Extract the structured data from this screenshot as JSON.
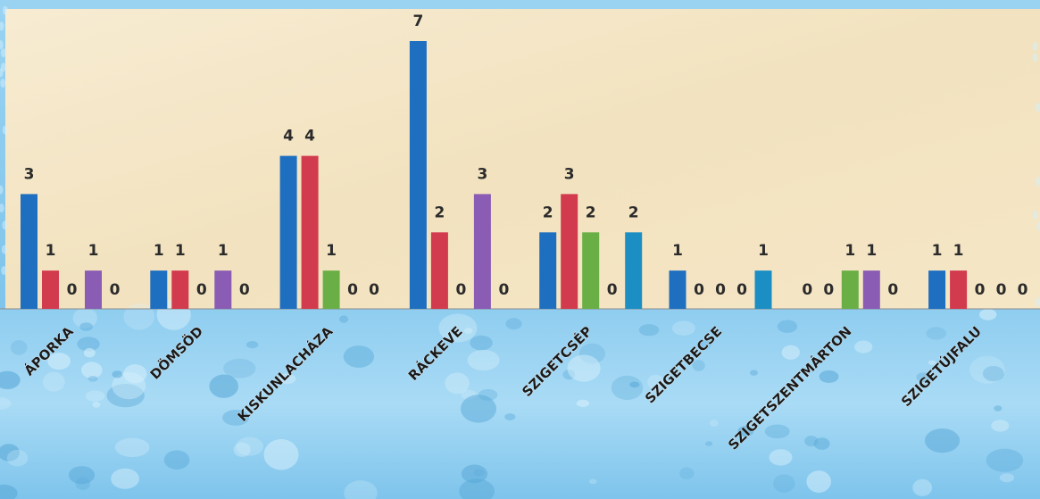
{
  "colors": {
    "parchment_light": "#f6ead0",
    "parchment_mid": "#eedcb4",
    "water_light": "#b6dff4",
    "water_dark": "#5fb0de",
    "label_text": "#2b2b2b",
    "series": [
      "#1f6fc1",
      "#d23a4e",
      "#6aaf45",
      "#8a5cb3",
      "#1b8fc4"
    ]
  },
  "chart_data": {
    "type": "bar",
    "title": "",
    "xlabel": "",
    "ylabel": "",
    "ylim": [
      0,
      7
    ],
    "grid": false,
    "legend": "none",
    "categories": [
      "ÁPORKA",
      "DÖMSÖD",
      "KISKUNLACHÁZA",
      "RÁCKEVE",
      "SZIGETCSÉP",
      "SZIGETBECSE",
      "SZIGETSZENTMÁRTON",
      "SZIGETÚJFALU"
    ],
    "series": [
      {
        "values": [
          3,
          1,
          4,
          7,
          2,
          1,
          0,
          1
        ]
      },
      {
        "values": [
          1,
          1,
          4,
          2,
          3,
          0,
          0,
          1
        ]
      },
      {
        "values": [
          0,
          0,
          1,
          0,
          2,
          0,
          1,
          0
        ]
      },
      {
        "values": [
          1,
          1,
          0,
          3,
          0,
          0,
          1,
          0
        ]
      },
      {
        "values": [
          0,
          0,
          0,
          0,
          2,
          1,
          0,
          0
        ]
      }
    ]
  }
}
